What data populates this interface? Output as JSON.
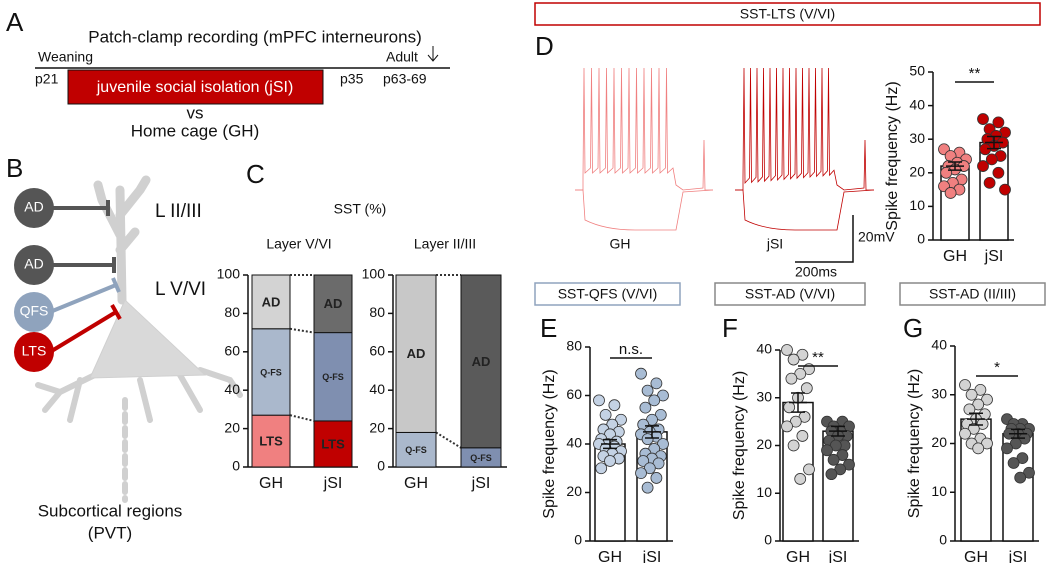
{
  "panel_labels": [
    "A",
    "B",
    "C",
    "D",
    "E",
    "F",
    "G"
  ],
  "timeline": {
    "title": "Patch-clamp recording (mPFC interneurons)",
    "start_label": "Weaning",
    "end_label": "Adult",
    "p_start": "p21",
    "box": "juvenile social isolation (jSI)",
    "p_end": "p35",
    "p_adult": "p63-69",
    "vs": "vs",
    "control": "Home cage (GH)"
  },
  "neuron": {
    "inputs": [
      "AD",
      "AD",
      "QFS",
      "LTS"
    ],
    "layer_top": "L II/III",
    "layer_deep": "L V/VI",
    "target": "Subcortical regions",
    "target_abbr": "(PVT)"
  },
  "panel_c_title": "SST (%)",
  "traces": {
    "gh": "GH",
    "jsi": "jSI",
    "scale_v": "20mV",
    "scale_t": "200ms"
  },
  "chart_data": [
    {
      "type": "stacked_bar",
      "title": "Layer V/VI",
      "categories": [
        "GH",
        "jSI"
      ],
      "ylim": [
        0,
        100
      ],
      "yticks": [
        0,
        20,
        40,
        60,
        80,
        100
      ],
      "series": [
        {
          "name": "LTS",
          "colors": [
            "#f08080",
            "#c00000"
          ],
          "values": [
            27,
            24
          ]
        },
        {
          "name": "Q-FS",
          "colors": [
            "#aab8cc",
            "#7f8fb0"
          ],
          "values": [
            45,
            46
          ]
        },
        {
          "name": "AD",
          "colors": [
            "#d3d3d3",
            "#6b6b6b"
          ],
          "values": [
            28,
            30
          ]
        }
      ]
    },
    {
      "type": "stacked_bar",
      "title": "Layer II/III",
      "categories": [
        "GH",
        "jSI"
      ],
      "ylim": [
        0,
        100
      ],
      "yticks": [
        0,
        20,
        40,
        60,
        80,
        100
      ],
      "series": [
        {
          "name": "Q-FS",
          "colors": [
            "#aab8cc",
            "#7f8fb0"
          ],
          "values": [
            18,
            10
          ]
        },
        {
          "name": "AD",
          "colors": [
            "#c8c8c8",
            "#5a5a5a"
          ],
          "values": [
            82,
            90
          ]
        }
      ]
    },
    {
      "type": "bar",
      "title": "SST-LTS (V/VI)",
      "ylabel": "Spike frequency (Hz)",
      "categories": [
        "GH",
        "jSI"
      ],
      "values": [
        22,
        29
      ],
      "errors": [
        1.2,
        1.8
      ],
      "points": [
        [
          27,
          26,
          25,
          24,
          23,
          22,
          22,
          21,
          20,
          18,
          17,
          16,
          15,
          14
        ],
        [
          36,
          35,
          33,
          32,
          31,
          30,
          29,
          28,
          27,
          25,
          24,
          22,
          20,
          17,
          15
        ]
      ],
      "colors": [
        "#f08080",
        "#c00000"
      ],
      "ylim": [
        0,
        50
      ],
      "yticks": [
        0,
        10,
        20,
        30,
        40,
        50
      ],
      "annotation": "**"
    },
    {
      "type": "bar",
      "title": "SST-QFS (V/VI)",
      "ylabel": "Spike frequency (Hz)",
      "categories": [
        "GH",
        "jSI"
      ],
      "values": [
        40,
        45
      ],
      "errors": [
        1.8,
        2.5
      ],
      "points": [
        [
          58,
          56,
          52,
          50,
          48,
          46,
          45,
          44,
          42,
          41,
          40,
          40,
          39,
          38,
          37,
          36,
          35,
          34,
          33,
          30
        ],
        [
          69,
          65,
          62,
          60,
          58,
          55,
          52,
          50,
          48,
          46,
          45,
          44,
          43,
          42,
          40,
          38,
          36,
          35,
          34,
          33,
          32,
          30,
          28,
          26,
          22
        ]
      ],
      "colors": [
        "#c4d2e4",
        "#a8bcd4"
      ],
      "ylim": [
        0,
        80
      ],
      "yticks": [
        0,
        20,
        40,
        60,
        80
      ],
      "annotation": "n.s."
    },
    {
      "type": "bar",
      "title": "SST-AD (V/VI)",
      "ylabel": "Spike frequency (Hz)",
      "categories": [
        "GH",
        "jSI"
      ],
      "values": [
        29,
        23
      ],
      "errors": [
        2,
        1
      ],
      "points": [
        [
          40,
          39,
          38,
          36,
          35,
          34,
          32,
          30,
          28,
          26,
          25,
          24,
          22,
          20,
          15,
          13
        ],
        [
          25,
          25,
          24,
          24,
          23,
          23,
          22,
          22,
          21,
          20,
          20,
          19,
          18,
          17,
          16,
          15,
          14
        ]
      ],
      "colors": [
        "#d3d3d3",
        "#555555"
      ],
      "ylim": [
        0,
        40
      ],
      "yticks": [
        0,
        10,
        20,
        30,
        40
      ],
      "annotation": "**"
    },
    {
      "type": "bar",
      "title": "SST-AD (II/III)",
      "ylabel": "Spike frequency (Hz)",
      "categories": [
        "GH",
        "jSI"
      ],
      "values": [
        25,
        22
      ],
      "errors": [
        1.2,
        0.9
      ],
      "points": [
        [
          32,
          31,
          30,
          29,
          28,
          27,
          26,
          25,
          24,
          24,
          23,
          22,
          21,
          20,
          20,
          19
        ],
        [
          25,
          24,
          24,
          23,
          23,
          23,
          22,
          22,
          22,
          21,
          20,
          19,
          17,
          16,
          14,
          13
        ]
      ],
      "colors": [
        "#d3d3d3",
        "#555555"
      ],
      "ylim": [
        0,
        40
      ],
      "yticks": [
        0,
        10,
        20,
        30,
        40
      ],
      "annotation": "*"
    }
  ]
}
